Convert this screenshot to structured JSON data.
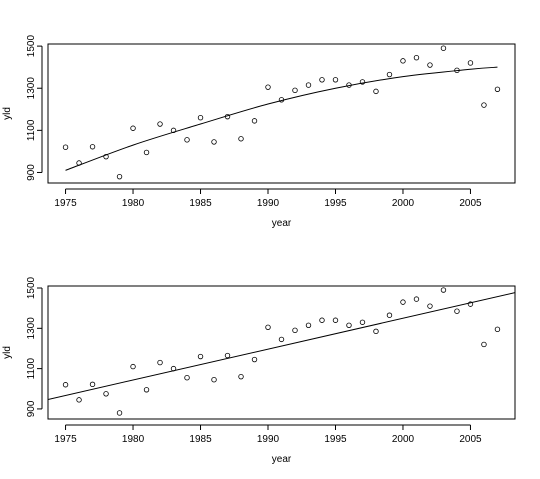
{
  "chart_data": [
    {
      "type": "scatter",
      "title": "",
      "xlabel": "year",
      "ylabel": "yld",
      "xlim": [
        1973.7,
        2008.3
      ],
      "ylim": [
        850,
        1510
      ],
      "xticks": [
        1975,
        1980,
        1985,
        1990,
        1995,
        2000,
        2005
      ],
      "yticks": [
        900,
        1100,
        1300,
        1500
      ],
      "x": [
        1975,
        1976,
        1977,
        1978,
        1979,
        1980,
        1981,
        1982,
        1983,
        1984,
        1985,
        1986,
        1987,
        1988,
        1989,
        1990,
        1991,
        1992,
        1993,
        1994,
        1995,
        1996,
        1997,
        1998,
        1999,
        2000,
        2001,
        2002,
        2003,
        2004,
        2005,
        2006,
        2007
      ],
      "y": [
        1020,
        945,
        1022,
        975,
        880,
        1110,
        995,
        1130,
        1100,
        1055,
        1160,
        1045,
        1165,
        1060,
        1145,
        1305,
        1245,
        1290,
        1315,
        1340,
        1340,
        1315,
        1330,
        1285,
        1365,
        1430,
        1445,
        1410,
        1490,
        1385,
        1420,
        1220,
        1295
      ],
      "fit": {
        "kind": "quadratic curve",
        "x": [
          1975,
          1980,
          1985,
          1990,
          1995,
          2000,
          2005,
          2007
        ],
        "y": [
          910,
          1030,
          1130,
          1225,
          1300,
          1355,
          1390,
          1400
        ]
      },
      "grid": false,
      "legend": "none"
    },
    {
      "type": "scatter",
      "title": "",
      "xlabel": "year",
      "ylabel": "yld",
      "xlim": [
        1973.7,
        2008.3
      ],
      "ylim": [
        850,
        1510
      ],
      "xticks": [
        1975,
        1980,
        1985,
        1990,
        1995,
        2000,
        2005
      ],
      "yticks": [
        900,
        1100,
        1300,
        1500
      ],
      "x": [
        1975,
        1976,
        1977,
        1978,
        1979,
        1980,
        1981,
        1982,
        1983,
        1984,
        1985,
        1986,
        1987,
        1988,
        1989,
        1990,
        1991,
        1992,
        1993,
        1994,
        1995,
        1996,
        1997,
        1998,
        1999,
        2000,
        2001,
        2002,
        2003,
        2004,
        2005,
        2006,
        2007
      ],
      "y": [
        1020,
        945,
        1022,
        975,
        880,
        1110,
        995,
        1130,
        1100,
        1055,
        1160,
        1045,
        1165,
        1060,
        1145,
        1305,
        1245,
        1290,
        1315,
        1340,
        1340,
        1315,
        1330,
        1285,
        1365,
        1430,
        1445,
        1410,
        1490,
        1385,
        1420,
        1220,
        1295
      ],
      "fit": {
        "kind": "straight line",
        "x": [
          1973.7,
          2008.3
        ],
        "y": [
          947,
          1477
        ]
      },
      "grid": false,
      "legend": "none"
    }
  ]
}
